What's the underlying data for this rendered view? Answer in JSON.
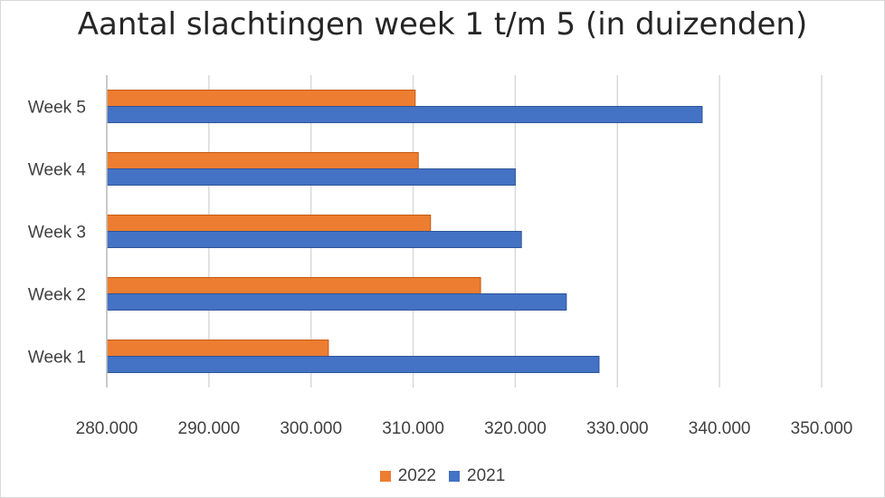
{
  "chart_data": {
    "type": "bar",
    "orientation": "horizontal",
    "title": "Aantal slachtingen week 1 t/m 5 (in duizenden)",
    "categories": [
      "Week 1",
      "Week 2",
      "Week 3",
      "Week 4",
      "Week 5"
    ],
    "series": [
      {
        "name": "2022",
        "color": "#ED7D31",
        "values": [
          301.7,
          316.6,
          311.7,
          310.5,
          310.2
        ]
      },
      {
        "name": "2021",
        "color": "#4472C4",
        "values": [
          328.2,
          325.0,
          320.6,
          320.0,
          338.3
        ]
      }
    ],
    "xlim": [
      280,
      350
    ],
    "xticks": [
      "280.000",
      "290.000",
      "300.000",
      "310.000",
      "320.000",
      "330.000",
      "340.000",
      "350.000"
    ],
    "grid": true,
    "legend_position": "bottom"
  }
}
